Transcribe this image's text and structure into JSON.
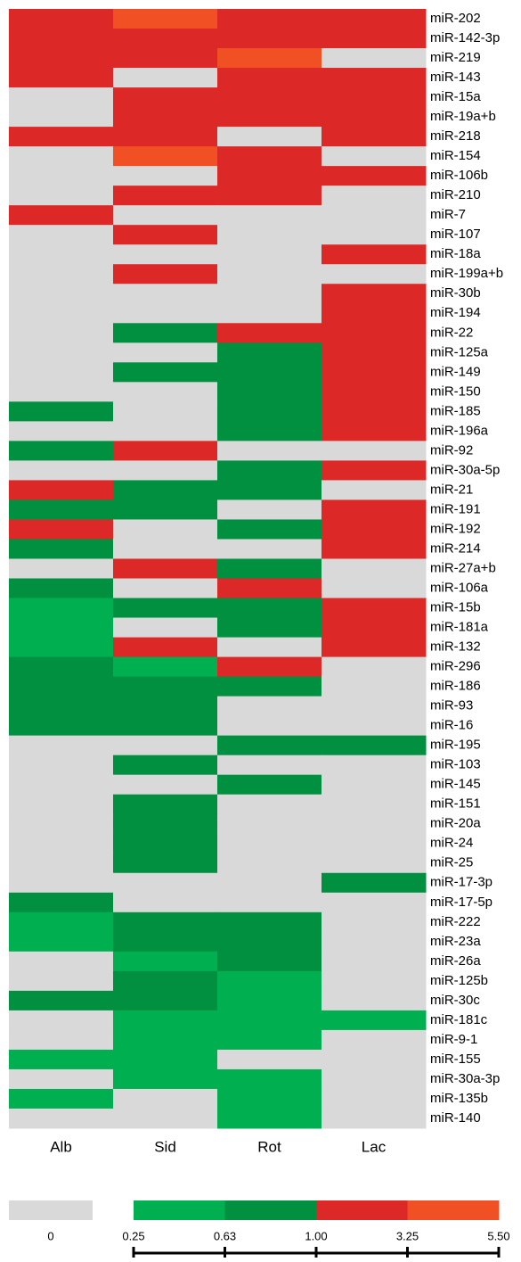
{
  "chart_data": {
    "type": "heatmap",
    "columns": [
      "Alb",
      "Sid",
      "Rot",
      "Lac"
    ],
    "rows": [
      "miR-202",
      "miR-142-3p",
      "miR-219",
      "miR-143",
      "miR-15a",
      "miR-19a+b",
      "miR-218",
      "miR-154",
      "miR-106b",
      "miR-210",
      "miR-7",
      "miR-107",
      "miR-18a",
      "miR-199a+b",
      "miR-30b",
      "miR-194",
      "miR-22",
      "miR-125a",
      "miR-149",
      "miR-150",
      "miR-185",
      "miR-196a",
      "miR-92",
      "miR-30a-5p",
      "miR-21",
      "miR-191",
      "miR-192",
      "miR-214",
      "miR-27a+b",
      "miR-106a",
      "miR-15b",
      "miR-181a",
      "miR-132",
      "miR-296",
      "miR-186",
      "miR-93",
      "miR-16",
      "miR-195",
      "miR-103",
      "miR-145",
      "miR-151",
      "miR-20a",
      "miR-24",
      "miR-25",
      "miR-17-3p",
      "miR-17-5p",
      "miR-222",
      "miR-23a",
      "miR-26a",
      "miR-125b",
      "miR-30c",
      "miR-181c",
      "miR-9-1",
      "miR-155",
      "miR-30a-3p",
      "miR-135b",
      "miR-140"
    ],
    "level_colors": [
      "#d9d9d9",
      "#00b050",
      "#009040",
      "#dc2826",
      "#f05024"
    ],
    "values": [
      [
        3,
        4,
        3,
        3
      ],
      [
        3,
        3,
        3,
        3
      ],
      [
        3,
        3,
        4,
        0
      ],
      [
        3,
        0,
        3,
        3
      ],
      [
        0,
        3,
        3,
        3
      ],
      [
        0,
        3,
        3,
        3
      ],
      [
        3,
        3,
        0,
        3
      ],
      [
        0,
        4,
        3,
        0
      ],
      [
        0,
        0,
        3,
        3
      ],
      [
        0,
        3,
        3,
        0
      ],
      [
        3,
        0,
        0,
        0
      ],
      [
        0,
        3,
        0,
        0
      ],
      [
        0,
        0,
        0,
        3
      ],
      [
        0,
        3,
        0,
        0
      ],
      [
        0,
        0,
        0,
        3
      ],
      [
        0,
        0,
        0,
        3
      ],
      [
        0,
        2,
        3,
        3
      ],
      [
        0,
        0,
        2,
        3
      ],
      [
        0,
        2,
        2,
        3
      ],
      [
        0,
        0,
        2,
        3
      ],
      [
        2,
        0,
        2,
        3
      ],
      [
        0,
        0,
        2,
        3
      ],
      [
        2,
        3,
        0,
        0
      ],
      [
        0,
        0,
        2,
        3
      ],
      [
        3,
        2,
        2,
        0
      ],
      [
        2,
        2,
        0,
        3
      ],
      [
        3,
        0,
        2,
        3
      ],
      [
        2,
        0,
        0,
        3
      ],
      [
        0,
        3,
        2,
        0
      ],
      [
        2,
        0,
        3,
        0
      ],
      [
        1,
        2,
        2,
        3
      ],
      [
        1,
        0,
        2,
        3
      ],
      [
        1,
        3,
        0,
        3
      ],
      [
        2,
        1,
        3,
        0
      ],
      [
        2,
        2,
        2,
        0
      ],
      [
        2,
        2,
        0,
        0
      ],
      [
        2,
        2,
        0,
        0
      ],
      [
        0,
        0,
        2,
        2
      ],
      [
        0,
        2,
        0,
        0
      ],
      [
        0,
        0,
        2,
        0
      ],
      [
        0,
        2,
        0,
        0
      ],
      [
        0,
        2,
        0,
        0
      ],
      [
        0,
        2,
        0,
        0
      ],
      [
        0,
        2,
        0,
        0
      ],
      [
        0,
        0,
        0,
        2
      ],
      [
        2,
        0,
        0,
        0
      ],
      [
        1,
        2,
        2,
        0
      ],
      [
        1,
        2,
        2,
        0
      ],
      [
        0,
        1,
        2,
        0
      ],
      [
        0,
        2,
        1,
        0
      ],
      [
        2,
        2,
        1,
        0
      ],
      [
        0,
        1,
        1,
        1
      ],
      [
        0,
        1,
        1,
        0
      ],
      [
        1,
        1,
        0,
        0
      ],
      [
        0,
        1,
        1,
        0
      ],
      [
        1,
        0,
        1,
        0
      ],
      [
        0,
        0,
        1,
        0
      ]
    ],
    "legend_zero": 0,
    "legend_ticks": [
      0.25,
      0.63,
      {
        "value": 1,
        "label": "1.00"
      },
      3.25,
      {
        "value": 5.5,
        "label": "5.50"
      }
    ]
  }
}
